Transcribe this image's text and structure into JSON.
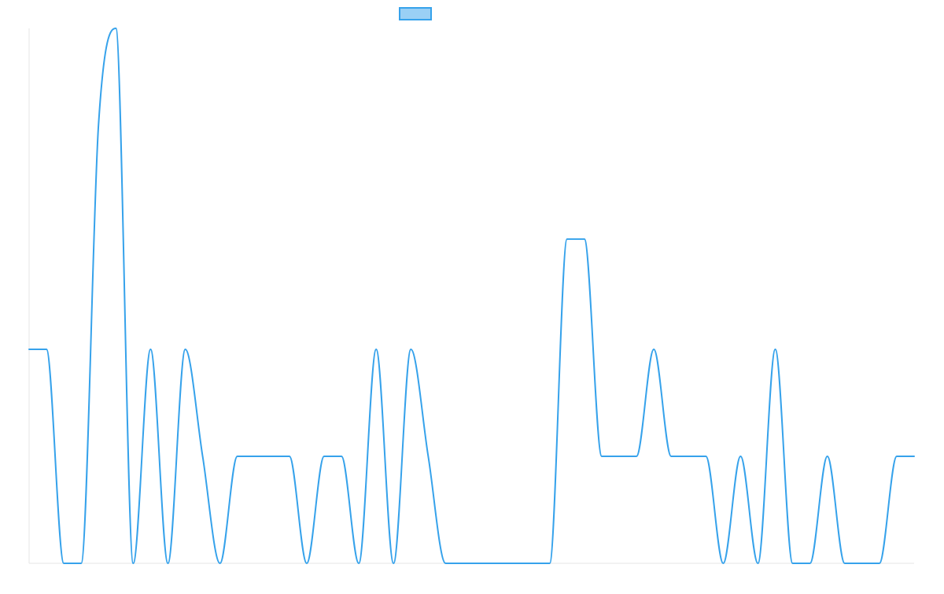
{
  "colors": {
    "line": "#36a2eb",
    "legend_fill": "#9ad0f5",
    "axis": "#e5e5e5",
    "background": "#ffffff"
  },
  "chart_data": {
    "type": "line",
    "title": "",
    "xlabel": "",
    "ylabel": "",
    "x": [
      0,
      1,
      2,
      3,
      4,
      5,
      6,
      7,
      8,
      9,
      10,
      11,
      12,
      13,
      14,
      15,
      16,
      17,
      18,
      19,
      20,
      21,
      22,
      23,
      24,
      25,
      26,
      27,
      28,
      29,
      30,
      31,
      32,
      33,
      34,
      35,
      36,
      37,
      38,
      39,
      40,
      41,
      42,
      43,
      44,
      45,
      46,
      47,
      48,
      49,
      50,
      51
    ],
    "ylim": [
      0,
      5
    ],
    "grid": false,
    "legend": {
      "position": "top-center",
      "show_label": false
    },
    "series": [
      {
        "values": [
          2,
          2,
          0,
          0,
          4.1,
          5,
          0,
          2,
          0,
          2,
          1,
          0,
          1,
          1,
          1,
          1,
          0,
          1,
          1,
          0,
          2,
          0,
          2,
          1,
          0,
          0,
          0,
          0,
          0,
          0,
          0,
          3.03,
          3.03,
          1,
          1,
          1,
          2,
          1,
          1,
          1,
          0,
          1,
          0,
          2,
          0,
          0,
          1,
          0,
          0,
          0,
          1,
          1
        ]
      }
    ]
  }
}
